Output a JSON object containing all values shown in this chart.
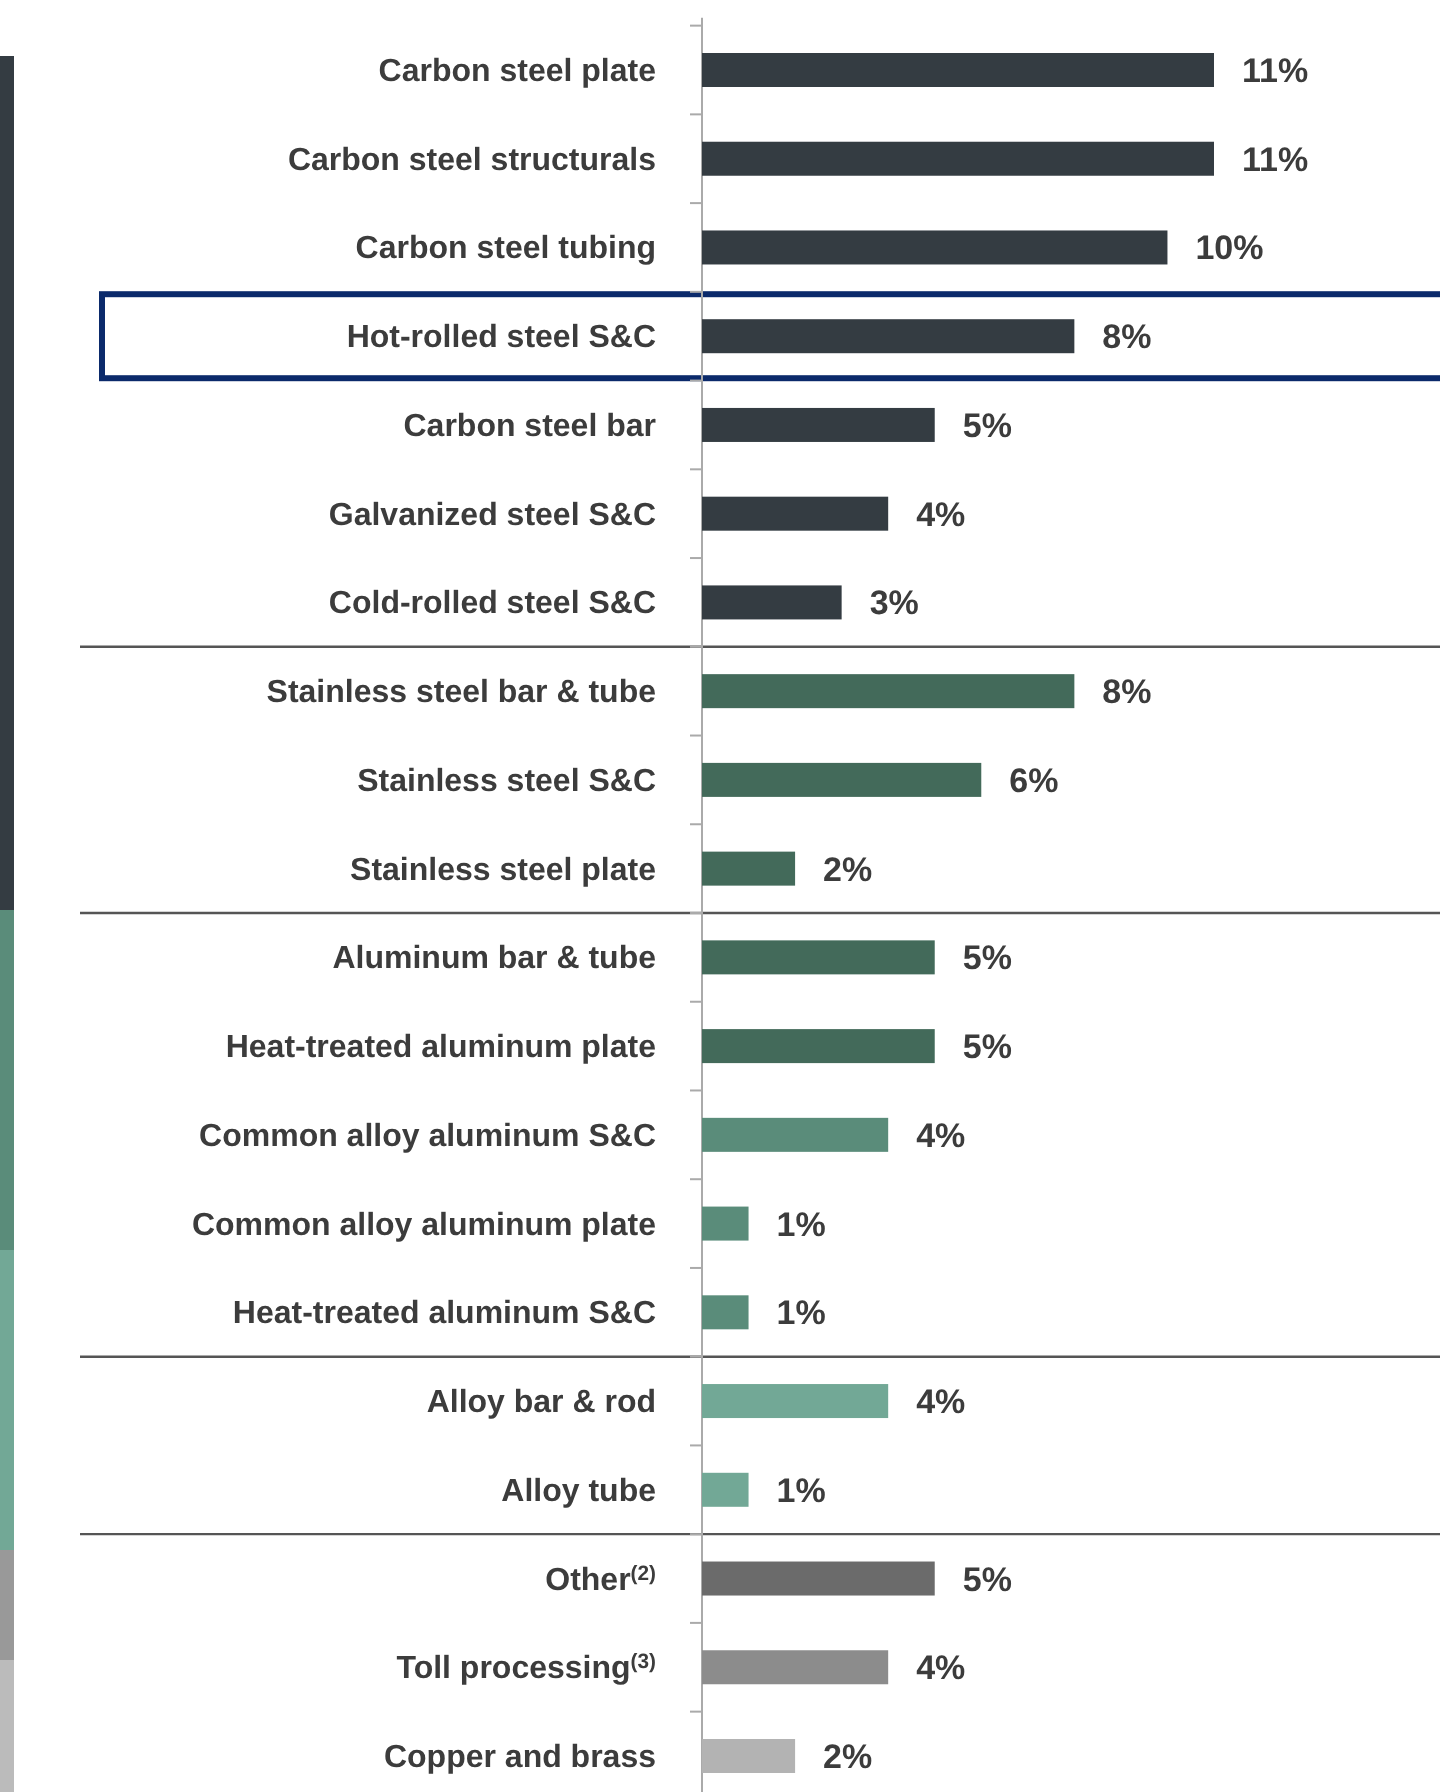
{
  "chart_data": {
    "type": "bar",
    "orientation": "horizontal",
    "categories": [
      "Carbon steel plate",
      "Carbon steel structurals",
      "Carbon steel tubing",
      "Hot-rolled steel S&C",
      "Carbon steel bar",
      "Galvanized steel S&C",
      "Cold-rolled steel S&C",
      "Stainless steel bar & tube",
      "Stainless steel S&C",
      "Stainless steel plate",
      "Aluminum bar & tube",
      "Heat-treated aluminum plate",
      "Common alloy aluminum S&C",
      "Common alloy aluminum plate",
      "Heat-treated aluminum S&C",
      "Alloy bar & rod",
      "Alloy tube",
      "Other$^{(2)}$",
      "Toll processing$^{(3)}$",
      "Copper and brass"
    ],
    "values": [
      11,
      11,
      10,
      8,
      5,
      4,
      3,
      8,
      6,
      2,
      5,
      5,
      4,
      1,
      1,
      4,
      1,
      5,
      4,
      2
    ],
    "value_labels": [
      "11%",
      "11%",
      "10%",
      "8%",
      "5%",
      "4%",
      "3%",
      "8%",
      "6%",
      "2%",
      "5%",
      "5%",
      "4%",
      "1%",
      "1%",
      "4%",
      "1%",
      "5%",
      "4%",
      "2%"
    ],
    "colors": [
      "#343c42",
      "#343c42",
      "#343c42",
      "#343c42",
      "#343c42",
      "#343c42",
      "#343c42",
      "#436a5a",
      "#436a5a",
      "#436a5a",
      "#436a5a",
      "#436a5a",
      "#5a8c7a",
      "#5a8c7a",
      "#5a8c7a",
      "#72a896",
      "#72a896",
      "#6b6b6b",
      "#8c8c8c",
      "#b3b3b3"
    ]
  }
}
